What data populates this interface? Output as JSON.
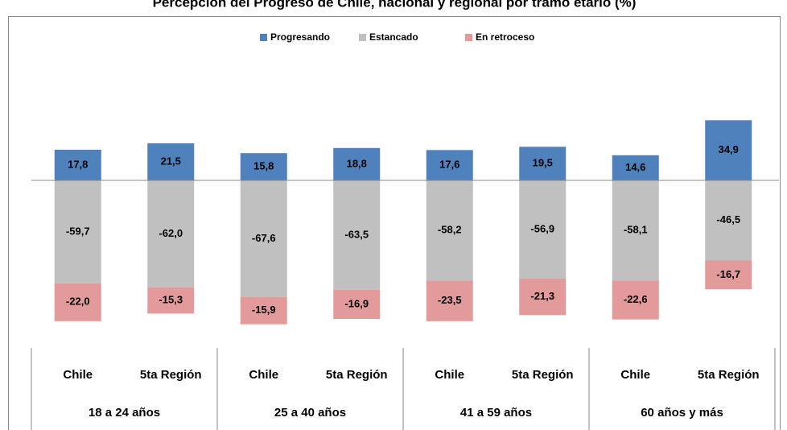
{
  "chart_data": {
    "type": "diverging-stacked-bar",
    "title": "Percepción del Progreso de Chile, nacional y regional por tramo etario (%)",
    "categories": [
      "Chile",
      "5ta Región",
      "Chile",
      "5ta Región",
      "Chile",
      "5ta Región",
      "Chile",
      "5ta Región"
    ],
    "groups": [
      "18 a 24 años",
      "25 a 40 años",
      "41 a 59 años",
      "60 años y más"
    ],
    "legend": "top",
    "series": [
      {
        "name": "Progresando",
        "color": "#4f81bd",
        "values": [
          17.8,
          21.5,
          15.8,
          18.8,
          17.6,
          19.5,
          14.6,
          34.9
        ],
        "value_labels": [
          "17,8",
          "21,5",
          "15,8",
          "18,8",
          "17,6",
          "19,5",
          "14,6",
          "34,9"
        ]
      },
      {
        "name": "Estancado",
        "color": "#c0c0c0",
        "values": [
          -59.7,
          -62.0,
          -67.6,
          -63.5,
          -58.2,
          -56.9,
          -58.1,
          -46.5
        ],
        "value_labels": [
          "-59,7",
          "-62,0",
          "-67,6",
          "-63,5",
          "-58,2",
          "-56,9",
          "-58,1",
          "-46,5"
        ]
      },
      {
        "name": "En retroceso",
        "color": "#e39a9a",
        "values": [
          -22.0,
          -15.3,
          -15.9,
          -16.9,
          -23.5,
          -21.3,
          -22.6,
          -16.7
        ],
        "value_labels": [
          "-22,0",
          "-15,3",
          "-15,9",
          "-16,9",
          "-23,5",
          "-21,3",
          "-22,6",
          "-16,7"
        ]
      }
    ]
  }
}
